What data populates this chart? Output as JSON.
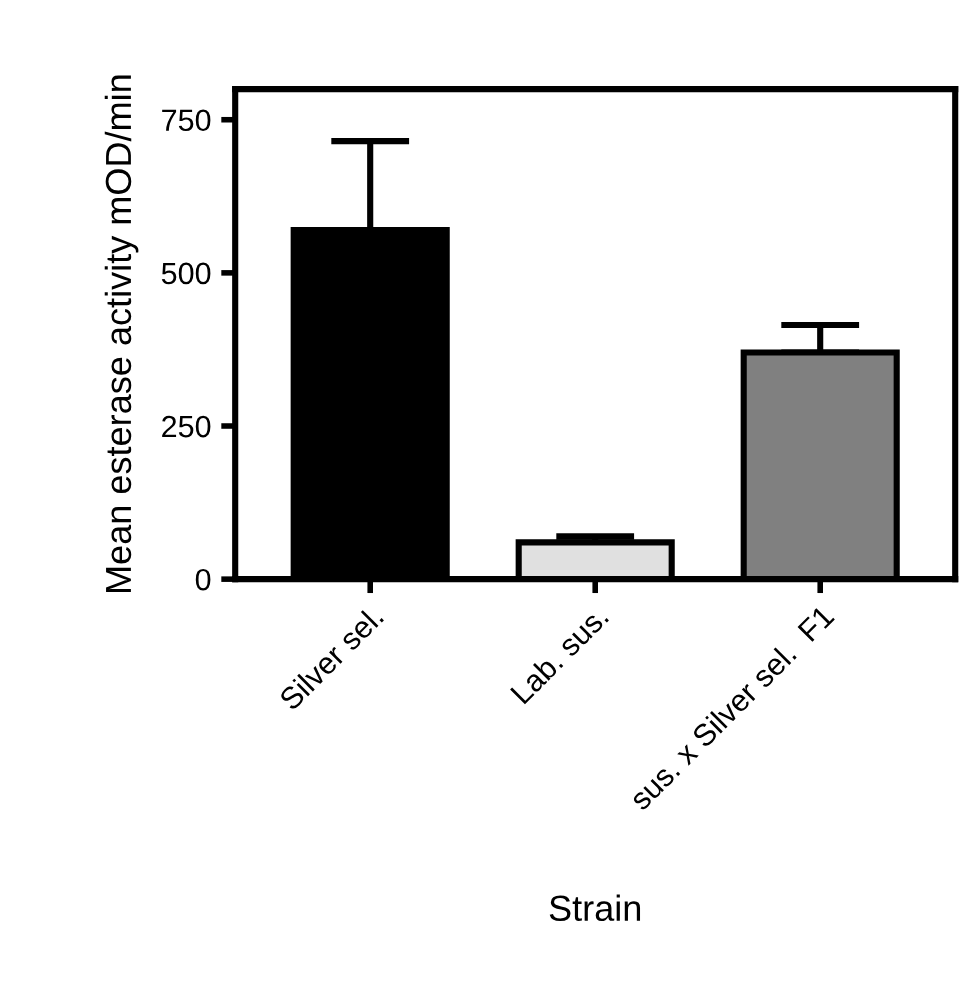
{
  "chart_data": {
    "type": "bar",
    "xlabel": "Strain",
    "ylabel": "Mean esterase activity mOD/min",
    "categories": [
      "Silver sel.",
      "Lab. sus.",
      "sus. x Silver sel.  F1"
    ],
    "values": [
      570,
      60,
      370
    ],
    "colors": [
      "#000000",
      "#e0e0e0",
      "#808080"
    ],
    "errors": [
      [
        570,
        715
      ],
      [
        60,
        70
      ],
      [
        370,
        415
      ]
    ],
    "ylim": [
      0,
      800
    ],
    "yticks": [
      0,
      250,
      500,
      750
    ],
    "grid": false
  }
}
